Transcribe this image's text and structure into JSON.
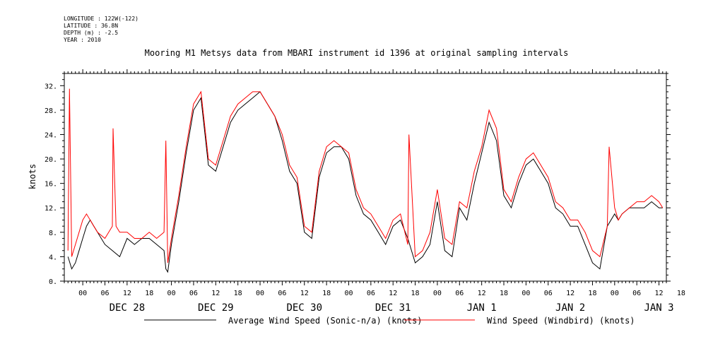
{
  "header": {
    "longitude": "LONGITUDE : 122W(-122)",
    "latitude": "LATITUDE : 36.8N",
    "depth": "DEPTH (m) : -2.5",
    "year": "YEAR : 2010"
  },
  "chart_data": {
    "type": "line",
    "title": "Mooring M1 Metsys data from MBARI instrument id 1396 at original sampling intervals",
    "ylabel": "knots",
    "ylim": [
      0,
      34
    ],
    "yticks": [
      "0.",
      "4.",
      "8.",
      "12.",
      "16.",
      "20.",
      "24.",
      "28.",
      "32."
    ],
    "xlim": [
      -5,
      158
    ],
    "hour_ticks": [
      "00",
      "06",
      "12",
      "18",
      "00",
      "06",
      "12",
      "18",
      "00",
      "06",
      "12",
      "18",
      "00",
      "06",
      "12",
      "18",
      "00",
      "06",
      "12",
      "18",
      "00",
      "06",
      "12",
      "18",
      "00",
      "06",
      "12",
      "18"
    ],
    "day_labels": [
      "DEC 28",
      "DEC 29",
      "DEC 30",
      "DEC 31",
      "JAN  1",
      "JAN  2",
      "JAN  3"
    ],
    "x_unit": "hours since 2010-12-28 00:00",
    "series": [
      {
        "name": "Average Wind Speed (Sonic-n/a) (knots)",
        "color": "#000000",
        "x": [
          -4,
          -3,
          -2,
          -1,
          0,
          1,
          2,
          3,
          4,
          6,
          8,
          10,
          12,
          14,
          16,
          18,
          20,
          22,
          22.5,
          23,
          24,
          26,
          28,
          30,
          32,
          34,
          36,
          38,
          40,
          42,
          44,
          46,
          48,
          50,
          52,
          54,
          56,
          58,
          60,
          62,
          64,
          66,
          68,
          70,
          72,
          74,
          76,
          78,
          80,
          82,
          84,
          86,
          88,
          90,
          92,
          94,
          96,
          98,
          100,
          102,
          104,
          106,
          108,
          110,
          112,
          114,
          116,
          118,
          120,
          122,
          124,
          126,
          128,
          130,
          132,
          134,
          136,
          138,
          140,
          142,
          144,
          145,
          146,
          148,
          150,
          152,
          154,
          156,
          157
        ],
        "values": [
          4,
          2,
          3,
          5,
          7,
          9,
          10,
          9,
          8,
          6,
          5,
          4,
          7,
          6,
          7,
          7,
          6,
          5,
          2,
          1.5,
          6,
          13,
          21,
          28,
          30,
          19,
          18,
          22,
          26,
          28,
          29,
          30,
          31,
          29,
          27,
          23,
          18,
          16,
          8,
          7,
          17,
          21,
          22,
          22,
          20,
          14,
          11,
          10,
          8,
          6,
          9,
          10,
          7,
          3,
          4,
          6,
          13,
          5,
          4,
          12,
          10,
          16,
          21,
          26,
          23,
          14,
          12,
          16,
          19,
          20,
          18,
          16,
          12,
          11,
          9,
          9,
          6,
          3,
          2,
          9,
          11,
          10,
          11,
          12,
          12,
          12,
          13,
          12,
          12
        ]
      },
      {
        "name": "Wind Speed (Windbird) (knots)",
        "color": "#ff0000",
        "x": [
          -4,
          -3.6,
          -3,
          -2,
          -1,
          0,
          1,
          2,
          3,
          4,
          6,
          8,
          8.2,
          9,
          10,
          12,
          14,
          16,
          18,
          20,
          22,
          22.5,
          23,
          24,
          26,
          28,
          30,
          32,
          34,
          36,
          38,
          40,
          42,
          44,
          46,
          48,
          50,
          52,
          54,
          56,
          58,
          60,
          62,
          64,
          66,
          68,
          70,
          72,
          74,
          76,
          78,
          80,
          82,
          84,
          86,
          88,
          88.3,
          90,
          92,
          94,
          96,
          98,
          100,
          102,
          104,
          106,
          108,
          110,
          112,
          114,
          116,
          118,
          120,
          122,
          124,
          126,
          128,
          130,
          132,
          134,
          136,
          138,
          140,
          142,
          142.5,
          144,
          145,
          146,
          148,
          150,
          152,
          154,
          156,
          157
        ],
        "values": [
          5,
          31.5,
          4,
          6,
          8,
          10,
          11,
          10,
          9,
          8,
          7,
          9,
          25,
          9,
          8,
          8,
          7,
          7,
          8,
          7,
          8,
          23,
          3,
          7,
          14,
          22,
          29,
          31,
          20,
          19,
          23,
          27,
          29,
          30,
          31,
          31,
          29,
          27,
          24,
          19,
          17,
          9,
          8,
          18,
          22,
          23,
          22,
          21,
          15,
          12,
          11,
          9,
          7,
          10,
          11,
          6,
          24,
          4,
          5,
          8,
          15,
          7,
          6,
          13,
          12,
          18,
          22,
          28,
          25,
          15,
          13,
          17,
          20,
          21,
          19,
          17,
          13,
          12,
          10,
          10,
          8,
          5,
          4,
          9,
          22,
          12,
          10,
          11,
          12,
          13,
          13,
          14,
          13,
          12
        ]
      }
    ]
  }
}
